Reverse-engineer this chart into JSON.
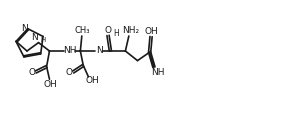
{
  "bg_color": "#ffffff",
  "line_color": "#1a1a1a",
  "line_width": 1.2,
  "font_size": 6.5,
  "fig_width": 3.03,
  "fig_height": 1.29,
  "dpi": 100,
  "xlim": [
    0,
    10.5
  ],
  "ylim": [
    0,
    4.3
  ]
}
